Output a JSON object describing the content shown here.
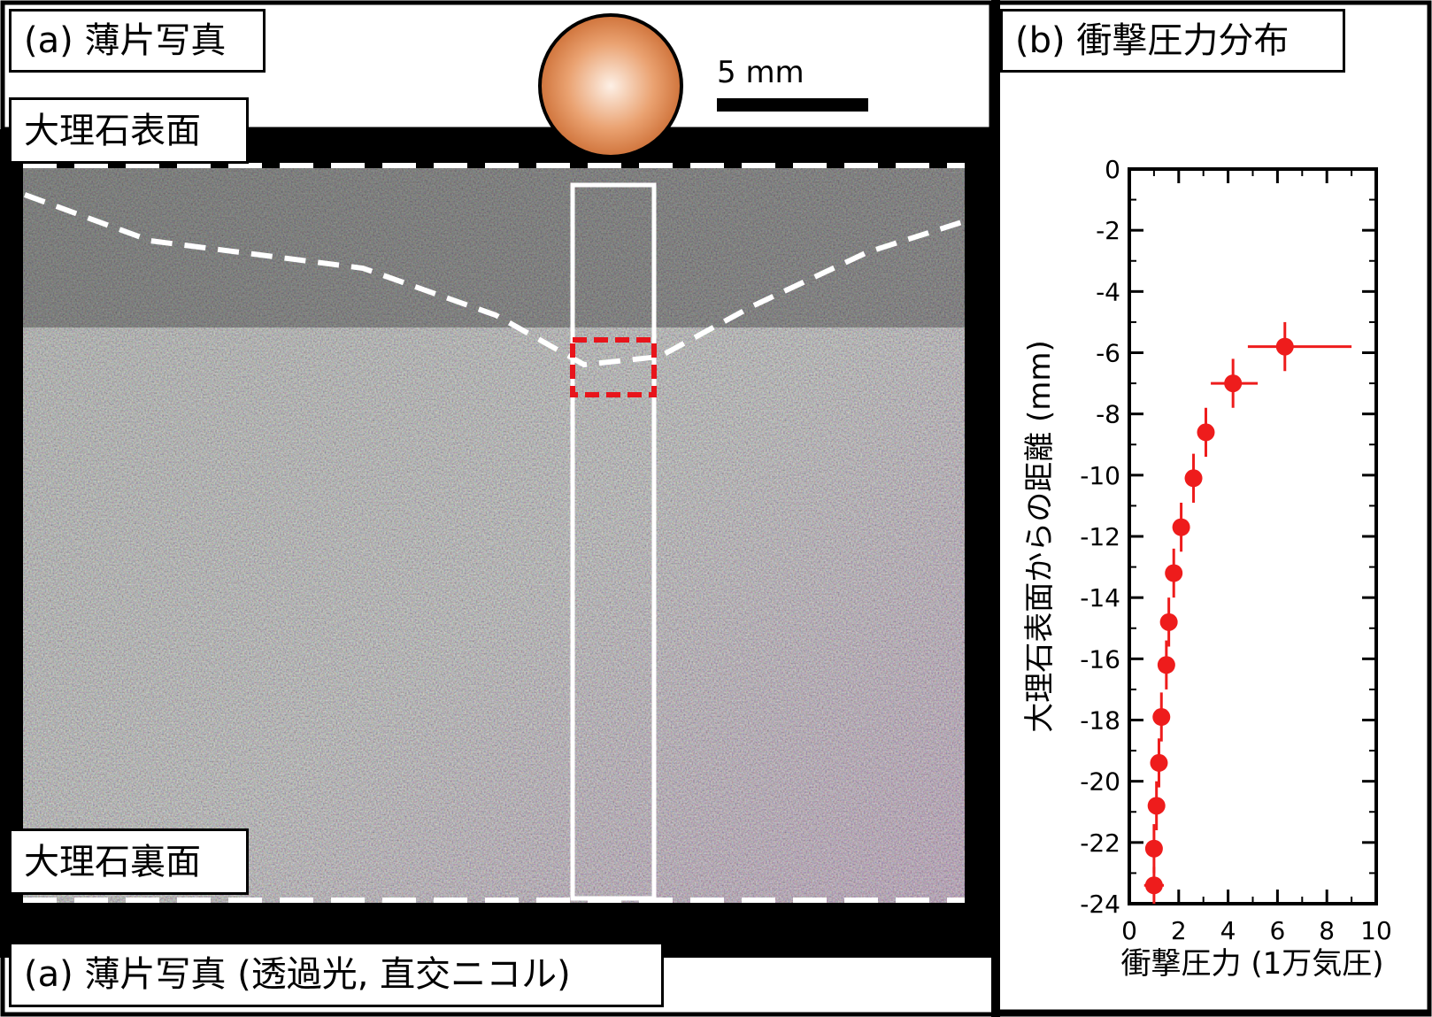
{
  "panel_a": {
    "title": "(a) 薄片写真",
    "surface_label": "大理石表面",
    "back_label": "大理石裏面",
    "caption": "(a) 薄片写真 (透過光, 直交ニコル)",
    "scale_bar_label": "5 mm",
    "colors": {
      "frame": "#000000",
      "guide_lines": "#ffffff",
      "highlight_box": "#e8141b",
      "ball": "#d9773a"
    }
  },
  "panel_b": {
    "title": "(b) 衝撃圧力分布"
  },
  "chart_data": {
    "type": "scatter",
    "title": "",
    "xlabel": "衝撃圧力 (1万気圧)",
    "ylabel": "大理石表面からの距離 (mm)",
    "xlim": [
      0,
      10
    ],
    "ylim": [
      -24,
      0
    ],
    "x_ticks": [
      "0",
      "2",
      "4",
      "6",
      "8",
      "10"
    ],
    "y_ticks": [
      "0",
      "-2",
      "-4",
      "-6",
      "-8",
      "-10",
      "-12",
      "-14",
      "-16",
      "-18",
      "-20",
      "-22",
      "-24"
    ],
    "grid": false,
    "marker_color": "#ee1c1c",
    "points": [
      {
        "x": 6.3,
        "y": -5.8,
        "xerr": [
          1.5,
          2.7
        ],
        "yerr": 0.8
      },
      {
        "x": 4.2,
        "y": -7.0,
        "xerr": [
          0.9,
          1.0
        ],
        "yerr": 0.8
      },
      {
        "x": 3.1,
        "y": -8.6,
        "xerr": 0.3,
        "yerr": 0.8
      },
      {
        "x": 2.6,
        "y": -10.1,
        "xerr": 0.3,
        "yerr": 0.8
      },
      {
        "x": 2.1,
        "y": -11.7,
        "xerr": 0.3,
        "yerr": 0.8
      },
      {
        "x": 1.8,
        "y": -13.2,
        "xerr": 0.3,
        "yerr": 0.8
      },
      {
        "x": 1.6,
        "y": -14.8,
        "xerr": 0.3,
        "yerr": 0.8
      },
      {
        "x": 1.5,
        "y": -16.2,
        "xerr": 0.3,
        "yerr": 0.8
      },
      {
        "x": 1.3,
        "y": -17.9,
        "xerr": 0.3,
        "yerr": 0.8
      },
      {
        "x": 1.2,
        "y": -19.4,
        "xerr": 0.3,
        "yerr": 0.8
      },
      {
        "x": 1.1,
        "y": -20.8,
        "xerr": 0.3,
        "yerr": 0.8
      },
      {
        "x": 1.0,
        "y": -22.2,
        "xerr": 0.3,
        "yerr": 0.8
      },
      {
        "x": 1.0,
        "y": -23.4,
        "xerr": 0.4,
        "yerr": 0.6
      }
    ]
  }
}
